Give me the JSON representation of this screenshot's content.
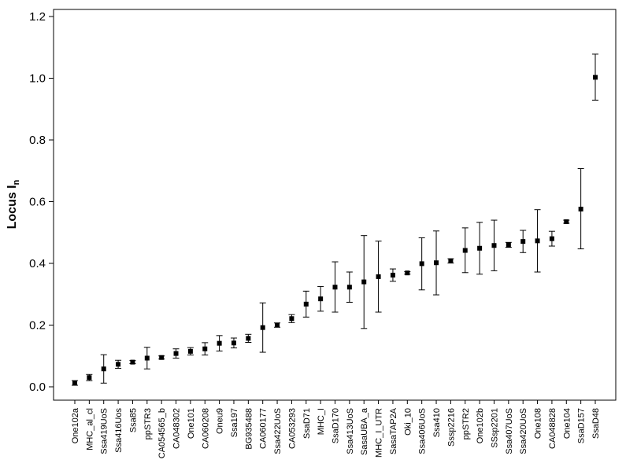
{
  "chart_data": {
    "type": "scatter",
    "subtype": "point-with-error-bars",
    "title": "",
    "xlabel": "",
    "ylabel_main": "Locus I",
    "ylabel_sub": "n",
    "ylim": [
      -0.05,
      1.25
    ],
    "yticks": [
      "0.0",
      "0.2",
      "0.4",
      "0.6",
      "0.8",
      "1.0",
      "1.2"
    ],
    "grid": false,
    "legend": "none",
    "categories": [
      "One102a",
      "MHC_al_cl",
      "Ssa419UoS",
      "Ssa416Uos",
      "Ssa85",
      "ppSTR3",
      "CA054565_b",
      "CA048302",
      "One101",
      "CA060208",
      "Oneu9",
      "Ssa197",
      "BG935488",
      "CA060177",
      "Ssa422UoS",
      "CA053293",
      "SsaD71",
      "MHC_I",
      "SsaD170",
      "Ssa413UoS",
      "SasaUBA_a",
      "MHC_I_UTR",
      "SasaTAP2A",
      "Oki_10",
      "Ssa406UoS",
      "Ssa410",
      "Sssp2216",
      "ppSTR2",
      "One102b",
      "SSsp2201",
      "Ssa407UoS",
      "Ssa420UoS",
      "One108",
      "CA048828",
      "One104",
      "SsaD157",
      "SsaD48"
    ],
    "values": [
      0.012,
      0.03,
      0.058,
      0.073,
      0.08,
      0.093,
      0.095,
      0.108,
      0.115,
      0.123,
      0.141,
      0.142,
      0.157,
      0.192,
      0.2,
      0.221,
      0.268,
      0.285,
      0.323,
      0.323,
      0.34,
      0.357,
      0.362,
      0.369,
      0.399,
      0.402,
      0.408,
      0.442,
      0.449,
      0.458,
      0.46,
      0.471,
      0.473,
      0.48,
      0.535,
      0.576,
      1.003
    ],
    "lower": [
      0.005,
      0.02,
      0.012,
      0.06,
      0.075,
      0.058,
      0.09,
      0.093,
      0.103,
      0.103,
      0.116,
      0.126,
      0.144,
      0.112,
      0.193,
      0.208,
      0.226,
      0.245,
      0.242,
      0.274,
      0.189,
      0.242,
      0.342,
      0.365,
      0.314,
      0.298,
      0.401,
      0.37,
      0.365,
      0.376,
      0.452,
      0.435,
      0.372,
      0.456,
      0.53,
      0.447,
      0.929
    ],
    "upper": [
      0.02,
      0.04,
      0.104,
      0.086,
      0.085,
      0.128,
      0.1,
      0.123,
      0.127,
      0.143,
      0.166,
      0.158,
      0.17,
      0.272,
      0.207,
      0.234,
      0.31,
      0.325,
      0.405,
      0.372,
      0.49,
      0.472,
      0.382,
      0.373,
      0.483,
      0.505,
      0.415,
      0.515,
      0.533,
      0.54,
      0.468,
      0.507,
      0.574,
      0.504,
      0.54,
      0.707,
      1.078
    ]
  }
}
